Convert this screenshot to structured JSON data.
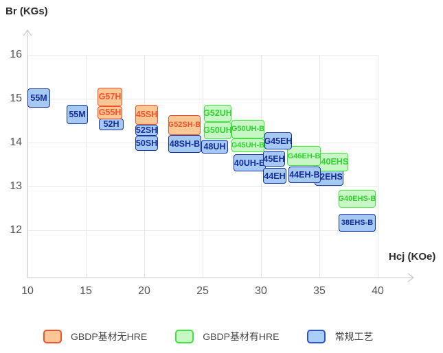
{
  "chart": {
    "y_axis_title": "Br (KGs)",
    "x_axis_title": "Hcj (KOe)"
  },
  "chart_data": {
    "type": "labeled-range-boxes",
    "title": "",
    "xlabel": "Hcj (KOe)",
    "ylabel": "Br (KGs)",
    "xlim": [
      10,
      43
    ],
    "ylim": [
      11,
      16.5
    ],
    "x_ticks": [
      10,
      15,
      20,
      25,
      30,
      35,
      40
    ],
    "y_ticks": [
      16,
      15,
      14,
      13,
      12
    ],
    "grid": true,
    "legend_position": "bottom",
    "series_legend": [
      "GBDP基材无HRE",
      "GBDP基材有HRE",
      "常规工艺"
    ],
    "boxes": [
      {
        "grade": "55M",
        "series": "blue",
        "hcj": [
          10.0,
          11.95
        ],
        "br": [
          15.23,
          14.8
        ]
      },
      {
        "grade": "55M",
        "series": "blue",
        "hcj": [
          13.35,
          15.18
        ],
        "br": [
          14.86,
          14.42
        ]
      },
      {
        "grade": "52H",
        "series": "blue",
        "hcj": [
          16.12,
          18.24
        ],
        "br": [
          14.55,
          14.28
        ]
      },
      {
        "grade": "G57H",
        "series": "orange",
        "hcj": [
          16.0,
          18.12
        ],
        "br": [
          15.25,
          14.83
        ]
      },
      {
        "grade": "G55H",
        "series": "orange",
        "hcj": [
          16.0,
          18.12
        ],
        "br": [
          14.83,
          14.53
        ]
      },
      {
        "grade": "52SH",
        "series": "blue",
        "hcj": [
          19.24,
          21.18
        ],
        "br": [
          14.41,
          14.16
        ]
      },
      {
        "grade": "50SH",
        "series": "blue",
        "hcj": [
          19.24,
          21.18
        ],
        "br": [
          14.16,
          13.81
        ]
      },
      {
        "grade": "45SH",
        "series": "orange",
        "hcj": [
          19.24,
          21.18
        ],
        "br": [
          14.86,
          14.41
        ]
      },
      {
        "grade": "48SH-B",
        "series": "blue",
        "hcj": [
          22.06,
          24.88
        ],
        "br": [
          14.17,
          13.77
        ]
      },
      {
        "grade": "G52SH-B",
        "series": "orange",
        "hcj": [
          22.06,
          24.82
        ],
        "br": [
          14.63,
          14.17
        ]
      },
      {
        "grade": "48UH",
        "series": "blue",
        "hcj": [
          24.88,
          27.18
        ],
        "br": [
          14.06,
          13.75
        ]
      },
      {
        "grade": "G52UH",
        "series": "green",
        "hcj": [
          25.12,
          27.47
        ],
        "br": [
          14.86,
          14.47
        ]
      },
      {
        "grade": "G50UH",
        "series": "green",
        "hcj": [
          25.12,
          27.47
        ],
        "br": [
          14.47,
          14.08
        ]
      },
      {
        "grade": "G50UH-B",
        "series": "green",
        "hcj": [
          27.47,
          30.29
        ],
        "br": [
          14.52,
          14.09
        ]
      },
      {
        "grade": "G45UH-B",
        "series": "green",
        "hcj": [
          27.47,
          30.29
        ],
        "br": [
          14.09,
          13.78
        ]
      },
      {
        "grade": "40UH-B",
        "series": "blue",
        "hcj": [
          27.65,
          30.41
        ],
        "br": [
          13.73,
          13.34
        ]
      },
      {
        "grade": "45EH",
        "series": "blue",
        "hcj": [
          30.18,
          32.06
        ],
        "br": [
          13.81,
          13.45
        ]
      },
      {
        "grade": "44EH",
        "series": "blue",
        "hcj": [
          30.18,
          32.18
        ],
        "br": [
          13.42,
          13.06
        ]
      },
      {
        "grade": "42EHS",
        "series": "blue",
        "hcj": [
          34.59,
          37.06
        ],
        "br": [
          13.42,
          13.02
        ]
      },
      {
        "grade": "G40EHS",
        "series": "green",
        "hcj": [
          34.59,
          37.47
        ],
        "br": [
          13.77,
          13.34
        ]
      },
      {
        "grade": "G46EH-B",
        "series": "green",
        "hcj": [
          32.24,
          35.12
        ],
        "br": [
          13.92,
          13.47
        ]
      },
      {
        "grade": "G45EH",
        "series": "blue",
        "hcj": [
          30.29,
          32.65
        ],
        "br": [
          14.23,
          13.84
        ]
      },
      {
        "grade": "44EH-B",
        "series": "blue",
        "hcj": [
          32.35,
          35.12
        ],
        "br": [
          13.45,
          13.08
        ]
      },
      {
        "grade": "G40EHS-B",
        "series": "green",
        "hcj": [
          36.65,
          39.82
        ],
        "br": [
          12.92,
          12.52
        ]
      },
      {
        "grade": "38EHS-B",
        "series": "blue",
        "hcj": [
          36.65,
          39.82
        ],
        "br": [
          12.38,
          11.97
        ]
      }
    ]
  },
  "legend": {
    "items": [
      {
        "label": "GBDP基材无HRE",
        "series": "orange"
      },
      {
        "label": "GBDP基材有HRE",
        "series": "green"
      },
      {
        "label": "常规工艺",
        "series": "blue"
      }
    ]
  },
  "colors": {
    "orange": {
      "fill": "#FAC795",
      "border": "#F5512D",
      "text": "#F5512D"
    },
    "green": {
      "fill": "#C9F6C5",
      "border": "#3BE73B",
      "text": "#2FD32F"
    },
    "blue": {
      "fill": "#A5C9F2",
      "border": "#1634A3",
      "text": "#142C97"
    },
    "legend_blue": {
      "fill": "#A9CEF7",
      "border": "#2D50D8"
    },
    "gridline": "#E8E8E8",
    "axis": "#C9C9C9",
    "tick_text": "#555555",
    "title_text": "#2B2B2B"
  }
}
